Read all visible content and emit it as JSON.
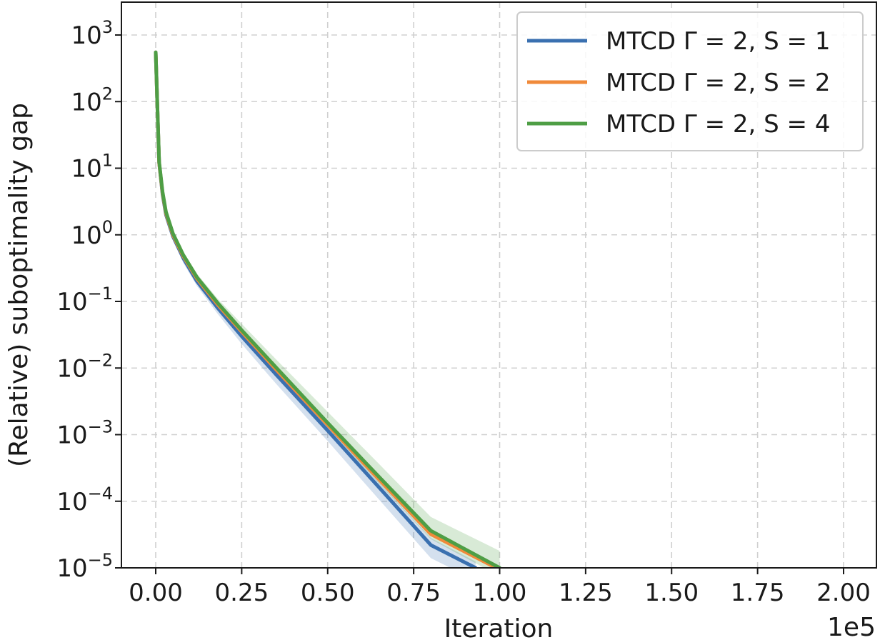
{
  "chart_data": {
    "type": "line",
    "title": "",
    "xlabel": "Iteration",
    "ylabel": "(Relative) suboptimality gap",
    "x_offset_label": "1e5",
    "xscale": "linear",
    "yscale": "log",
    "xlim": [
      -0.1,
      2.1
    ],
    "ylim": [
      1e-05,
      3000
    ],
    "grid": true,
    "legend_position": "top-right",
    "xticks": [
      "0.00",
      "0.25",
      "0.50",
      "0.75",
      "1.00",
      "1.25",
      "1.50",
      "1.75",
      "2.00"
    ],
    "xtick_values": [
      0,
      0.25,
      0.5,
      0.75,
      1.0,
      1.25,
      1.5,
      1.75,
      2.0
    ],
    "yticks": [
      {
        "value": 1000,
        "base": "10",
        "exp": "3"
      },
      {
        "value": 100,
        "base": "10",
        "exp": "2"
      },
      {
        "value": 10,
        "base": "10",
        "exp": "1"
      },
      {
        "value": 1,
        "base": "10",
        "exp": "0"
      },
      {
        "value": 0.1,
        "base": "10",
        "exp": "−1"
      },
      {
        "value": 0.01,
        "base": "10",
        "exp": "−2"
      },
      {
        "value": 0.001,
        "base": "10",
        "exp": "−3"
      },
      {
        "value": 0.0001,
        "base": "10",
        "exp": "−4"
      },
      {
        "value": 1e-05,
        "base": "10",
        "exp": "−5"
      }
    ],
    "series": [
      {
        "name": "MTCD Γ = 2, S = 1",
        "color": "#3a70b0",
        "x": [
          0,
          0.005,
          0.01,
          0.02,
          0.03,
          0.05,
          0.08,
          0.12,
          0.18,
          0.25,
          0.35,
          0.5,
          0.65,
          0.8,
          0.93
        ],
        "y": [
          550,
          80,
          12,
          4,
          2.0,
          0.95,
          0.45,
          0.2,
          0.08,
          0.03,
          0.008,
          0.00115,
          0.00016,
          2.2e-05,
          1e-05
        ],
        "band_low": [
          550,
          75,
          11,
          3.6,
          1.8,
          0.85,
          0.38,
          0.17,
          0.065,
          0.023,
          0.0058,
          0.0008,
          0.000105,
          1.4e-05,
          6.5e-06
        ],
        "band_high": [
          550,
          85,
          13,
          4.4,
          2.2,
          1.05,
          0.5,
          0.23,
          0.092,
          0.034,
          0.0092,
          0.00135,
          0.00019,
          2.8e-05,
          1.25e-05
        ]
      },
      {
        "name": "MTCD Γ = 2, S = 2",
        "color": "#f08a3a",
        "x": [
          0,
          0.005,
          0.01,
          0.02,
          0.03,
          0.05,
          0.08,
          0.12,
          0.18,
          0.25,
          0.35,
          0.5,
          0.65,
          0.8,
          0.99
        ],
        "y": [
          550,
          80,
          12,
          4.2,
          2.1,
          1.0,
          0.48,
          0.22,
          0.09,
          0.035,
          0.0095,
          0.0014,
          0.00021,
          3.2e-05,
          1e-05
        ]
      },
      {
        "name": "MTCD Γ = 2, S = 4",
        "color": "#4e9e45",
        "x": [
          0,
          0.005,
          0.01,
          0.02,
          0.03,
          0.05,
          0.08,
          0.12,
          0.18,
          0.25,
          0.35,
          0.5,
          0.65,
          0.8,
          1.0
        ],
        "y": [
          550,
          82,
          12.5,
          4.4,
          2.2,
          1.05,
          0.5,
          0.23,
          0.095,
          0.037,
          0.0102,
          0.0015,
          0.00023,
          3.6e-05,
          1e-05
        ],
        "band_low": [
          550,
          78,
          11.5,
          4.1,
          2.0,
          0.98,
          0.46,
          0.21,
          0.085,
          0.033,
          0.0088,
          0.00125,
          0.00018,
          2.7e-05,
          7.5e-06
        ],
        "band_high": [
          550,
          86,
          13.5,
          4.7,
          2.4,
          1.15,
          0.56,
          0.26,
          0.11,
          0.046,
          0.0135,
          0.0022,
          0.00036,
          5.8e-05,
          1.8e-05
        ]
      }
    ]
  }
}
